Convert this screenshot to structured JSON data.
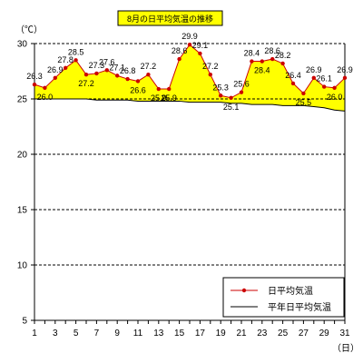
{
  "chart_data": {
    "type": "area",
    "title": "8月の日平均気温の推移",
    "ylabel": "（℃）",
    "xlabel": "（日）",
    "x": [
      1,
      2,
      3,
      4,
      5,
      6,
      7,
      8,
      9,
      10,
      11,
      12,
      13,
      14,
      15,
      16,
      17,
      18,
      19,
      20,
      21,
      22,
      23,
      24,
      25,
      26,
      27,
      28,
      29,
      30,
      31
    ],
    "x_tick_labels": [
      "1",
      "3",
      "5",
      "7",
      "9",
      "11",
      "13",
      "15",
      "17",
      "19",
      "21",
      "23",
      "25",
      "27",
      "29",
      "31"
    ],
    "ylim": [
      5,
      30
    ],
    "y_tick_labels": [
      "30",
      "25",
      "20",
      "15",
      "10",
      "5"
    ],
    "grid": "horizontal-dashed",
    "fill_color": "#ffff00",
    "series": [
      {
        "name": "日平均気温",
        "color": "#cc0000",
        "values": [
          26.3,
          26.0,
          26.9,
          27.8,
          28.5,
          27.2,
          27.3,
          27.6,
          27.1,
          26.8,
          26.6,
          27.2,
          25.9,
          25.9,
          28.6,
          29.9,
          29.1,
          27.2,
          25.3,
          25.1,
          25.6,
          28.4,
          28.4,
          28.6,
          28.2,
          26.4,
          25.5,
          26.9,
          26.1,
          26.0,
          26.9
        ]
      },
      {
        "name": "平年日平均気温",
        "color": "#000000",
        "values": [
          25.0,
          25.0,
          25.0,
          25.0,
          25.0,
          25.0,
          24.9,
          24.9,
          24.9,
          24.9,
          24.8,
          24.8,
          24.8,
          24.8,
          24.8,
          24.7,
          24.7,
          24.7,
          24.7,
          24.6,
          24.6,
          24.5,
          24.5,
          24.5,
          24.4,
          24.4,
          24.4,
          24.3,
          24.2,
          24.0,
          23.9
        ]
      }
    ],
    "legend": {
      "position": "bottom-right"
    }
  }
}
